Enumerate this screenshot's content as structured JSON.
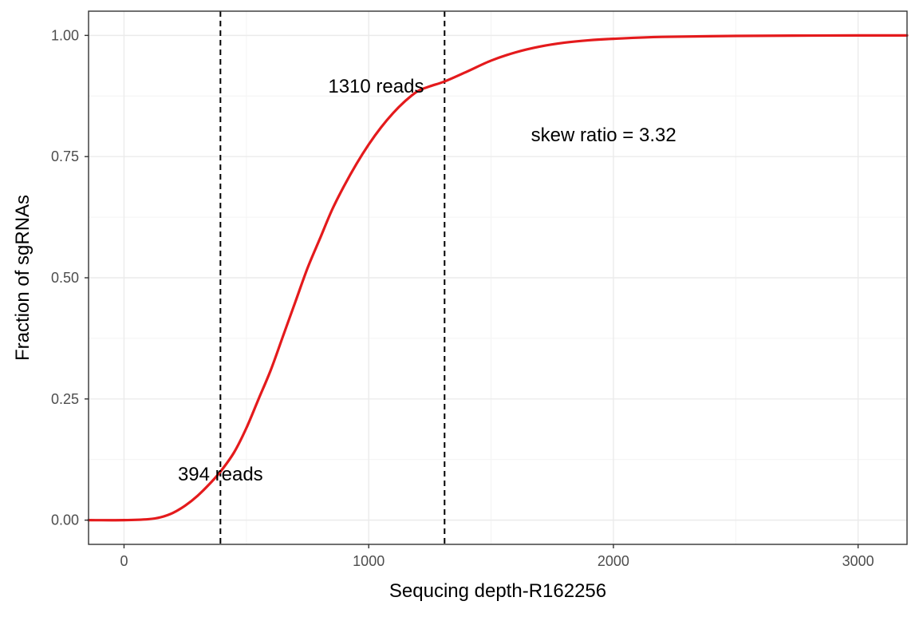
{
  "chart_data": {
    "type": "line",
    "xlabel": "Sequcing depth-R162256",
    "ylabel": "Fraction of sgRNAs",
    "xlim": [
      -145,
      3200
    ],
    "ylim": [
      -0.05,
      1.05
    ],
    "x_ticks": [
      0,
      1000,
      2000,
      3000
    ],
    "x_tick_labels": [
      "0",
      "1000",
      "2000",
      "3000"
    ],
    "y_ticks": [
      0,
      0.25,
      0.5,
      0.75,
      1.0
    ],
    "y_tick_labels": [
      "0.00",
      "0.25",
      "0.50",
      "0.75",
      "1.00"
    ],
    "grid": true,
    "series": [
      {
        "color": "#e41a1c",
        "x": [
          -145,
          0,
          100,
          150,
          200,
          250,
          300,
          350,
          394,
          450,
          500,
          550,
          600,
          650,
          700,
          750,
          800,
          850,
          900,
          950,
          1000,
          1050,
          1100,
          1150,
          1200,
          1250,
          1310,
          1400,
          1500,
          1600,
          1700,
          1800,
          1900,
          2000,
          2200,
          2500,
          3000,
          3200
        ],
        "y": [
          0.0,
          0.0,
          0.002,
          0.006,
          0.015,
          0.03,
          0.05,
          0.075,
          0.1,
          0.14,
          0.19,
          0.25,
          0.31,
          0.38,
          0.45,
          0.52,
          0.58,
          0.64,
          0.69,
          0.735,
          0.775,
          0.81,
          0.84,
          0.865,
          0.885,
          0.895,
          0.905,
          0.925,
          0.948,
          0.965,
          0.977,
          0.985,
          0.99,
          0.993,
          0.997,
          0.999,
          1.0,
          1.0
        ]
      }
    ],
    "vlines": [
      394,
      1310
    ],
    "annotations": [
      {
        "text": "394 reads",
        "x": 394,
        "y": 0.095
      },
      {
        "text": "1310 reads",
        "x": 1030,
        "y": 0.895
      },
      {
        "text": "skew ratio = 3.32",
        "x": 1960,
        "y": 0.795
      }
    ]
  }
}
